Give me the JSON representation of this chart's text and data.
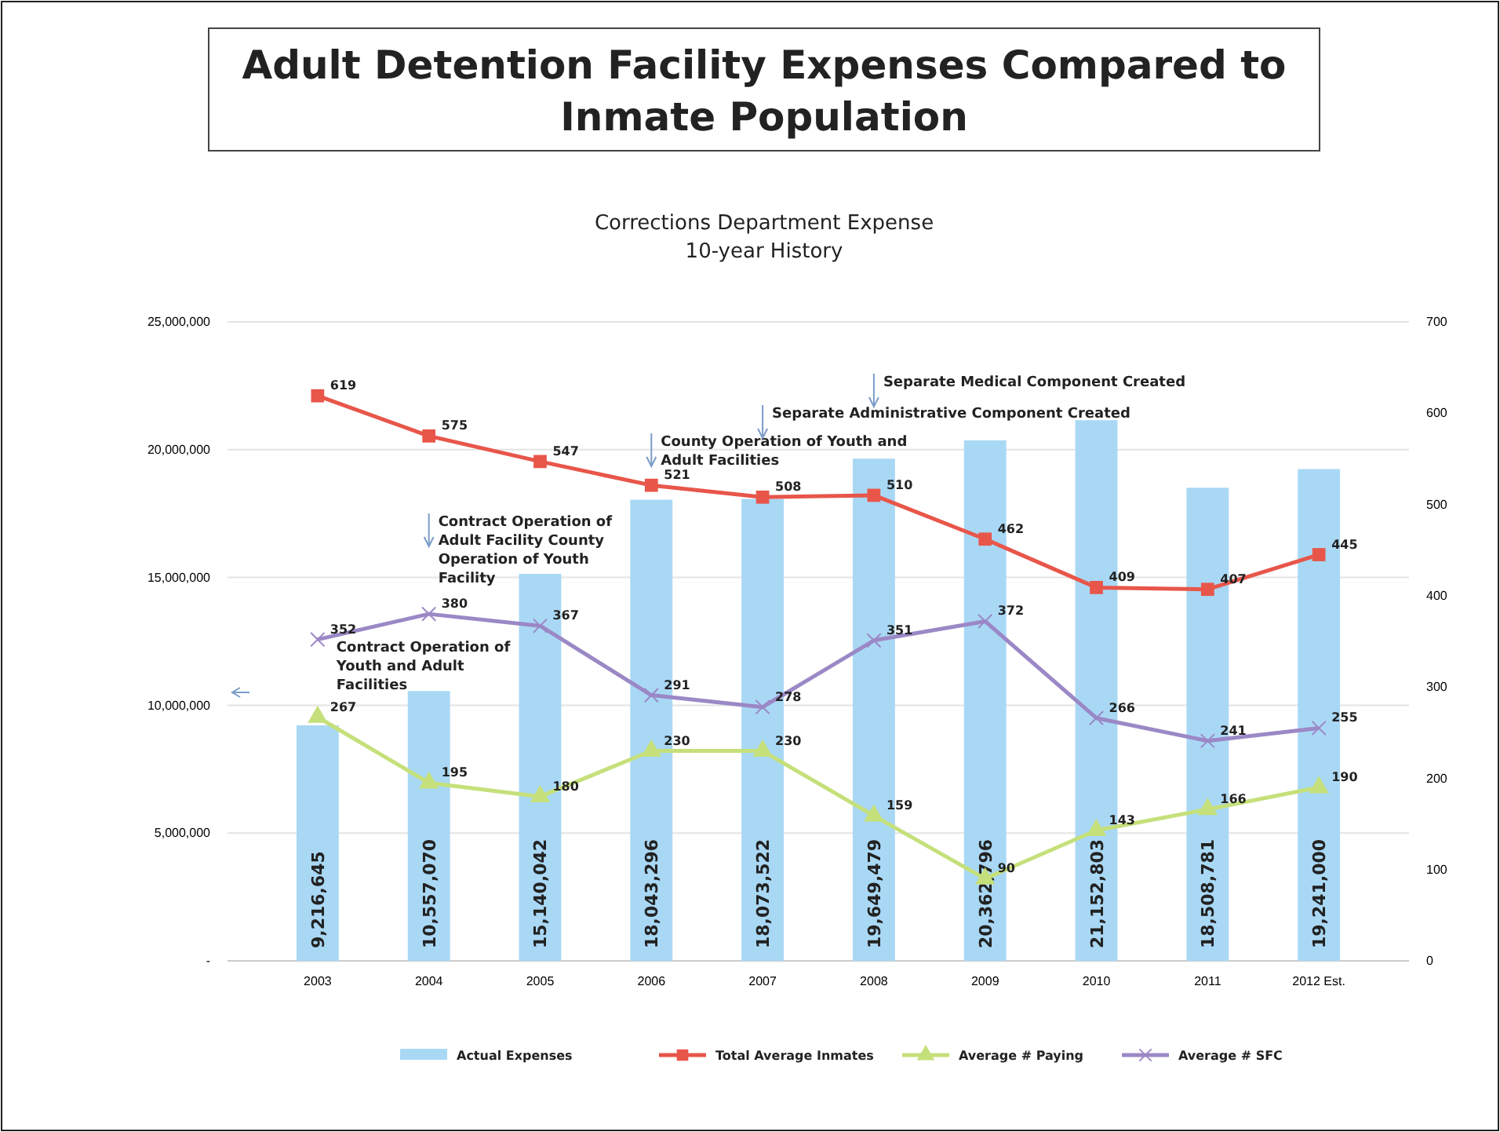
{
  "chart_data": {
    "type": "bar",
    "title": "Adult Detention Facility  Expenses Compared to Inmate Population",
    "subtitle": "Corrections Department Expense\n10-year History",
    "categories": [
      "2003",
      "2004",
      "2005",
      "2006",
      "2007",
      "2008",
      "2009",
      "2010",
      "2011",
      "2012 Est."
    ],
    "series": [
      {
        "name": "Actual Expenses",
        "color": "#a9d8f5",
        "values": [
          9216645,
          10557070,
          15140042,
          18043296,
          18073522,
          19649479,
          20362796,
          21152803,
          18508781,
          19241000
        ],
        "value_labels": [
          "9,216,645",
          "10,557,070",
          "15,140,042",
          "18,043,296",
          "18,073,522",
          "19,649,479",
          "20,362,796",
          "21,152,803",
          "18,508,781",
          "19,241,000"
        ]
      },
      {
        "name": "Total Average Inmates",
        "type": "line",
        "axis": "y2",
        "marker": "square",
        "color": "#e8564a",
        "values": [
          619,
          575,
          547,
          521,
          508,
          510,
          462,
          409,
          407,
          445
        ]
      },
      {
        "name": "Average # Paying",
        "type": "line",
        "axis": "y2",
        "marker": "triangle",
        "color": "#c5e07a",
        "values": [
          267,
          195,
          180,
          230,
          230,
          159,
          90,
          143,
          166,
          190
        ]
      },
      {
        "name": "Average # SFC",
        "type": "line",
        "axis": "y2",
        "marker": "cross",
        "color": "#9b88c6",
        "values": [
          352,
          380,
          367,
          291,
          278,
          351,
          372,
          266,
          241,
          255
        ]
      }
    ],
    "ylim": [
      0,
      25000000
    ],
    "yticks": [
      {
        "value": 0,
        "label": "-"
      },
      {
        "value": 5000000,
        "label": "5,000,000"
      },
      {
        "value": 10000000,
        "label": "10,000,000"
      },
      {
        "value": 15000000,
        "label": "15,000,000"
      },
      {
        "value": 20000000,
        "label": "20,000,000"
      },
      {
        "value": 25000000,
        "label": "25,000,000"
      }
    ],
    "y2lim": [
      0,
      700
    ],
    "y2ticks": [
      0,
      100,
      200,
      300,
      400,
      500,
      600,
      700
    ],
    "grid": "y",
    "legend": "bottom",
    "data_labels": true,
    "annotations": [
      "Contract Operation of Youth and Adult Facilities",
      "Contract Operation of Adult Facility County Operation of Youth Facility",
      "County Operation of Youth and Adult Facilities",
      "Separate Administrative Component Created",
      "Separate Medical Component Created"
    ]
  }
}
